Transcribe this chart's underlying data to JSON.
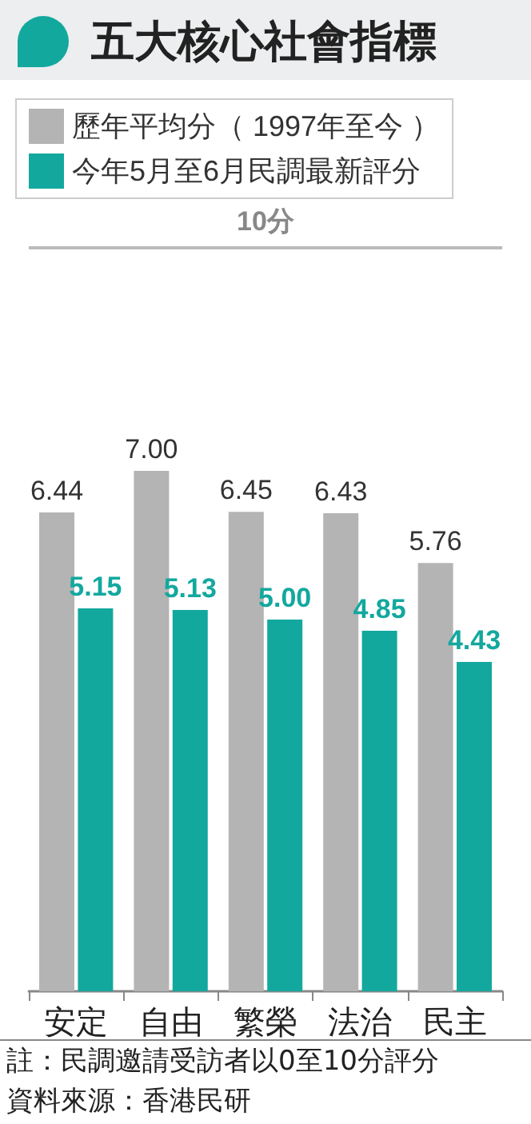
{
  "chart_data": {
    "type": "bar",
    "title": "五大核心社會指標",
    "categories": [
      "安定",
      "自由",
      "繁榮",
      "法治",
      "民主"
    ],
    "series": [
      {
        "name": "歷年平均分（ 1997年至今 ）",
        "color": "#b4b4b4",
        "values": [
          6.44,
          7.0,
          6.45,
          6.43,
          5.76
        ],
        "value_labels": [
          "6.44",
          "7.00",
          "6.45",
          "6.43",
          "5.76"
        ]
      },
      {
        "name": "今年5月至6月民調最新評分",
        "color": "#13a89e",
        "values": [
          5.15,
          5.13,
          5.0,
          4.85,
          4.43
        ],
        "value_labels": [
          "5.15",
          "5.13",
          "5.00",
          "4.85",
          "4.43"
        ]
      }
    ],
    "ylim": [
      0,
      10
    ],
    "tick_labels": "x",
    "legend": "top",
    "ref_lines": [
      {
        "axis": "y",
        "value": 10,
        "label": "10分",
        "color": "#bbbbbb"
      }
    ],
    "annotations": [
      "註：民調邀請受訪者以0至10分評分",
      "資料來源：香港民研"
    ]
  }
}
